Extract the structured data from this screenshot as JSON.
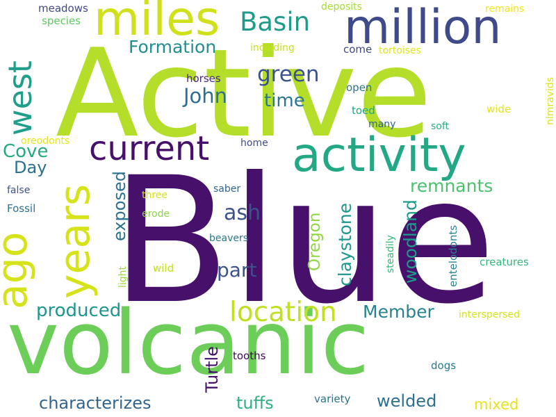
{
  "words": [
    {
      "text": "Blue",
      "color": "#46106b",
      "rotated": false
    },
    {
      "text": "Active",
      "color": "#b5de2b",
      "rotated": false
    },
    {
      "text": "volcanic",
      "color": "#6cce59",
      "rotated": false
    },
    {
      "text": "million",
      "color": "#3e4a89",
      "rotated": false
    },
    {
      "text": "activity",
      "color": "#22a884",
      "rotated": false
    },
    {
      "text": "miles",
      "color": "#d0e11c",
      "rotated": false
    },
    {
      "text": "ago",
      "color": "#d6e21a",
      "rotated": true
    },
    {
      "text": "years",
      "color": "#d6e21a",
      "rotated": true
    },
    {
      "text": "west",
      "color": "#1f9e89",
      "rotated": true
    },
    {
      "text": "current",
      "color": "#46106b",
      "rotated": false
    },
    {
      "text": "Basin",
      "color": "#1e9c89",
      "rotated": false
    },
    {
      "text": "location",
      "color": "#c1df24",
      "rotated": false
    },
    {
      "text": "Formation",
      "color": "#218f8d",
      "rotated": false
    },
    {
      "text": "green",
      "color": "#3b528b",
      "rotated": false
    },
    {
      "text": "John",
      "color": "#2d708e",
      "rotated": false
    },
    {
      "text": "time",
      "color": "#2b758e",
      "rotated": false
    },
    {
      "text": "Cove",
      "color": "#24aa83",
      "rotated": false
    },
    {
      "text": "Day",
      "color": "#2d708e",
      "rotated": false
    },
    {
      "text": "exposed",
      "color": "#2c718e",
      "rotated": true
    },
    {
      "text": "remnants",
      "color": "#4ac16d",
      "rotated": false
    },
    {
      "text": "ash",
      "color": "#3b528b",
      "rotated": false
    },
    {
      "text": "Oregon",
      "color": "#90d743",
      "rotated": true
    },
    {
      "text": "claystone",
      "color": "#1f978b",
      "rotated": true
    },
    {
      "text": "woodland",
      "color": "#1e9b8a",
      "rotated": true
    },
    {
      "text": "part",
      "color": "#3b528b",
      "rotated": false
    },
    {
      "text": "produced",
      "color": "#1f968b",
      "rotated": false
    },
    {
      "text": "Member",
      "color": "#25838e",
      "rotated": false
    },
    {
      "text": "Turtle",
      "color": "#46106b",
      "rotated": true
    },
    {
      "text": "characterizes",
      "color": "#32658e",
      "rotated": false
    },
    {
      "text": "tuffs",
      "color": "#2bb07f",
      "rotated": false
    },
    {
      "text": "welded",
      "color": "#2d708e",
      "rotated": false
    },
    {
      "text": "mixed",
      "color": "#e5e419",
      "rotated": false
    },
    {
      "text": "meadows",
      "color": "#3e4a89",
      "rotated": false
    },
    {
      "text": "species",
      "color": "#5ec962",
      "rotated": false
    },
    {
      "text": "deposits",
      "color": "#a5db36",
      "rotated": false
    },
    {
      "text": "remains",
      "color": "#f1e51d",
      "rotated": false
    },
    {
      "text": "including",
      "color": "#c7e020",
      "rotated": false
    },
    {
      "text": "come",
      "color": "#3f4788",
      "rotated": false
    },
    {
      "text": "tortoises",
      "color": "#e2e418",
      "rotated": false
    },
    {
      "text": "nimravids",
      "color": "#dde318",
      "rotated": true
    },
    {
      "text": "horses",
      "color": "#482878",
      "rotated": false
    },
    {
      "text": "open",
      "color": "#2c738e",
      "rotated": false
    },
    {
      "text": "toed",
      "color": "#20a486",
      "rotated": false
    },
    {
      "text": "wide",
      "color": "#e5e419",
      "rotated": false
    },
    {
      "text": "many",
      "color": "#33638d",
      "rotated": false
    },
    {
      "text": "soft",
      "color": "#29af7f",
      "rotated": false
    },
    {
      "text": "oreodonts",
      "color": "#e7e419",
      "rotated": false
    },
    {
      "text": "home",
      "color": "#3e4a89",
      "rotated": false
    },
    {
      "text": "false",
      "color": "#3b528b",
      "rotated": false
    },
    {
      "text": "three",
      "color": "#d5e21a",
      "rotated": false
    },
    {
      "text": "saber",
      "color": "#32648e",
      "rotated": false
    },
    {
      "text": "Fossil",
      "color": "#2c728e",
      "rotated": false
    },
    {
      "text": "erode",
      "color": "#8bd646",
      "rotated": false
    },
    {
      "text": "beavers",
      "color": "#2a788e",
      "rotated": false
    },
    {
      "text": "light",
      "color": "#9bd93c",
      "rotated": true
    },
    {
      "text": "wild",
      "color": "#c2df23",
      "rotated": false
    },
    {
      "text": "steadily",
      "color": "#35b779",
      "rotated": true
    },
    {
      "text": "entelodonts",
      "color": "#26828e",
      "rotated": true
    },
    {
      "text": "creatures",
      "color": "#35b779",
      "rotated": false
    },
    {
      "text": "interspersed",
      "color": "#d5e21a",
      "rotated": false
    },
    {
      "text": "tooths",
      "color": "#3e0853",
      "rotated": false
    },
    {
      "text": "dogs",
      "color": "#2a788e",
      "rotated": false
    },
    {
      "text": "variety",
      "color": "#2c728e",
      "rotated": false
    }
  ]
}
